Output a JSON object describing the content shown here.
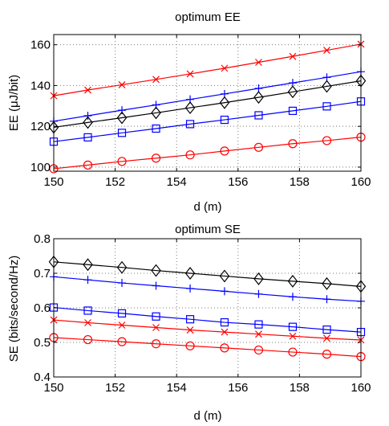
{
  "chart_data": [
    {
      "type": "line",
      "title": "optimum EE",
      "xlabel": "d (m)",
      "ylabel": "EE (μJ/bit)",
      "xlim": [
        150,
        160
      ],
      "ylim": [
        98,
        165
      ],
      "xticks": [
        150,
        152,
        154,
        156,
        158,
        160
      ],
      "yticks": [
        100,
        120,
        140,
        160
      ],
      "grid": true,
      "x": [
        150,
        151.11,
        152.22,
        153.33,
        154.44,
        155.56,
        156.67,
        157.78,
        158.89,
        160
      ],
      "series": [
        {
          "color": "#ff0000",
          "marker": "x",
          "values": [
            135,
            137.8,
            140.4,
            143.0,
            145.7,
            148.5,
            151.4,
            154.3,
            157.3,
            160.3
          ]
        },
        {
          "color": "#0000ff",
          "marker": "+",
          "values": [
            122.5,
            125.2,
            127.9,
            130.5,
            133.2,
            135.9,
            138.6,
            141.3,
            144.0,
            146.8
          ]
        },
        {
          "color": "#000000",
          "marker": "diamond",
          "values": [
            119.5,
            121.9,
            124.2,
            126.6,
            129.1,
            131.6,
            134.2,
            136.9,
            139.6,
            142.3
          ]
        },
        {
          "color": "#0000ff",
          "marker": "square",
          "values": [
            112.5,
            114.6,
            116.8,
            118.9,
            121.1,
            123.2,
            125.4,
            127.6,
            129.8,
            132.2
          ]
        },
        {
          "color": "#ff0000",
          "marker": "circle",
          "values": [
            99.2,
            101.0,
            102.8,
            104.4,
            106.0,
            107.9,
            109.7,
            111.5,
            113.0,
            114.7
          ]
        }
      ]
    },
    {
      "type": "line",
      "title": "optimum SE",
      "xlabel": "d (m)",
      "ylabel": "SE (bits/second/Hz)",
      "xlim": [
        150,
        160
      ],
      "ylim": [
        0.4,
        0.8
      ],
      "xticks": [
        150,
        152,
        154,
        156,
        158,
        160
      ],
      "yticks": [
        0.4,
        0.5,
        0.6,
        0.7,
        0.8
      ],
      "grid": true,
      "x": [
        150,
        151.11,
        152.22,
        153.33,
        154.44,
        155.56,
        156.67,
        157.78,
        158.89,
        160
      ],
      "series": [
        {
          "color": "#000000",
          "marker": "diamond",
          "values": [
            0.733,
            0.725,
            0.717,
            0.708,
            0.7,
            0.692,
            0.684,
            0.677,
            0.67,
            0.662
          ]
        },
        {
          "color": "#0000ff",
          "marker": "+",
          "values": [
            0.69,
            0.681,
            0.672,
            0.664,
            0.656,
            0.648,
            0.64,
            0.632,
            0.625,
            0.619
          ]
        },
        {
          "color": "#0000ff",
          "marker": "square",
          "values": [
            0.601,
            0.592,
            0.584,
            0.575,
            0.567,
            0.558,
            0.552,
            0.545,
            0.537,
            0.53
          ]
        },
        {
          "color": "#ff0000",
          "marker": "x",
          "values": [
            0.565,
            0.557,
            0.55,
            0.543,
            0.536,
            0.53,
            0.524,
            0.518,
            0.512,
            0.507
          ]
        },
        {
          "color": "#ff0000",
          "marker": "circle",
          "values": [
            0.514,
            0.508,
            0.502,
            0.496,
            0.49,
            0.484,
            0.478,
            0.472,
            0.466,
            0.459
          ]
        }
      ]
    }
  ]
}
